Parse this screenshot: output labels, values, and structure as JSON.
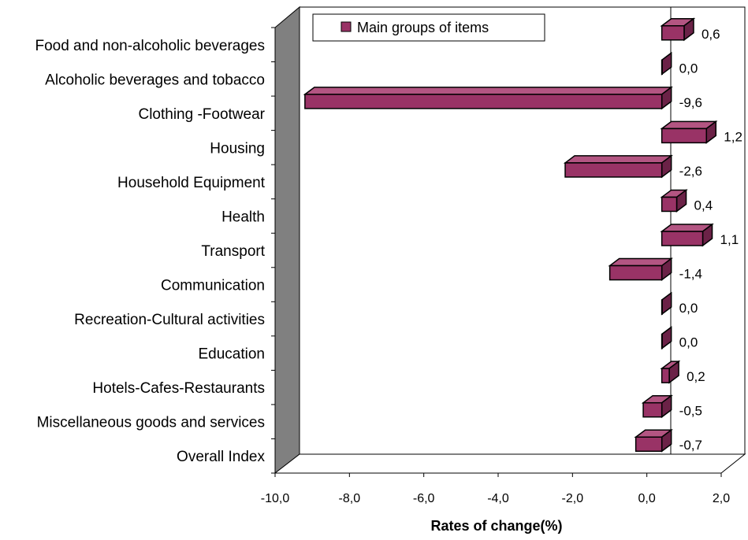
{
  "chart_data": {
    "type": "bar",
    "orientation": "horizontal",
    "style": "3d",
    "categories": [
      "Food and non-alcoholic beverages",
      "Alcoholic beverages and tobacco",
      "Clothing -Footwear",
      "Housing",
      "Household Equipment",
      "Health",
      "Transport",
      "Communication",
      "Recreation-Cultural activities",
      "Education",
      "Hotels-Cafes-Restaurants",
      "Miscellaneous goods and services",
      "Overall Index"
    ],
    "series": [
      {
        "name": "Main groups of items",
        "values": [
          0.6,
          0.0,
          -9.6,
          1.2,
          -2.6,
          0.4,
          1.1,
          -1.4,
          0.0,
          0.0,
          0.2,
          -0.5,
          -0.7
        ],
        "labels": [
          "0,6",
          "0,0",
          "-9,6",
          "1,2",
          "-2,6",
          "0,4",
          "1,1",
          "-1,4",
          "0,0",
          "0,0",
          "0,2",
          "-0,5",
          "-0,7"
        ],
        "color": "#993366"
      }
    ],
    "xlabel": "Rates of change(%)",
    "xlim": [
      -10,
      2
    ],
    "xticks": [
      -10,
      -8,
      -6,
      -4,
      -2,
      0,
      2
    ],
    "xtick_labels": [
      "-10,0",
      "-8,0",
      "-6,0",
      "-4,0",
      "-2,0",
      "0,0",
      "2,0"
    ],
    "grid": false,
    "legend_position": "top"
  },
  "colors": {
    "bar_front": "#993366",
    "bar_top": "#b35582",
    "bar_side": "#6b2247",
    "wall_shadow": "#808080"
  }
}
